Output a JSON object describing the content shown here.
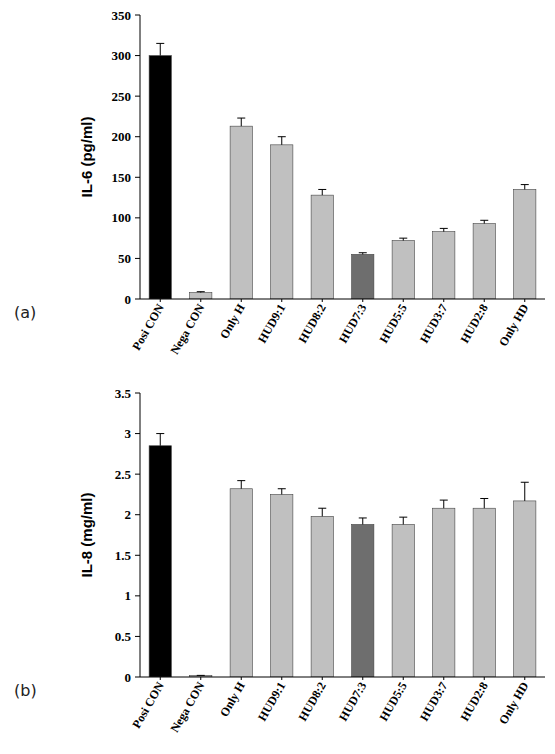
{
  "chart_data": [
    {
      "type": "bar",
      "panel_label": "(a)",
      "ylabel": "IL-6 (pg/ml)",
      "categories": [
        "Posi CON",
        "Nega CON",
        "Only H",
        "HUD9:1",
        "HUD8:2",
        "HUD7:3",
        "HUD5:5",
        "HUD3:7",
        "HUD2:8",
        "Only HD"
      ],
      "values": [
        300,
        8,
        213,
        190,
        128,
        55,
        72,
        83,
        93,
        135
      ],
      "errors": [
        15,
        1,
        10,
        10,
        7,
        2,
        3,
        4,
        4,
        6
      ],
      "colors": [
        "#000000",
        "#c0c0c0",
        "#c0c0c0",
        "#c0c0c0",
        "#c0c0c0",
        "#6e6e6e",
        "#c0c0c0",
        "#c0c0c0",
        "#c0c0c0",
        "#c0c0c0"
      ],
      "ylim": [
        0,
        350
      ],
      "yticks": [
        0,
        50,
        100,
        150,
        200,
        250,
        300,
        350
      ],
      "grid": false
    },
    {
      "type": "bar",
      "panel_label": "(b)",
      "ylabel": "IL-8 (mg/ml)",
      "categories": [
        "Posi CON",
        "Nega CON",
        "Only H",
        "HUD9:1",
        "HUD8:2",
        "HUD7:3",
        "HUD5:5",
        "HUD3:7",
        "HUD2:8",
        "Only HD"
      ],
      "values": [
        2.85,
        0.02,
        2.32,
        2.25,
        1.98,
        1.88,
        1.88,
        2.08,
        2.08,
        2.17
      ],
      "errors": [
        0.15,
        0,
        0.1,
        0.07,
        0.1,
        0.08,
        0.09,
        0.1,
        0.12,
        0.23
      ],
      "colors": [
        "#000000",
        "#c0c0c0",
        "#c0c0c0",
        "#c0c0c0",
        "#c0c0c0",
        "#6e6e6e",
        "#c0c0c0",
        "#c0c0c0",
        "#c0c0c0",
        "#c0c0c0"
      ],
      "ylim": [
        0,
        3.5
      ],
      "yticks": [
        0,
        0.5,
        1,
        1.5,
        2,
        2.5,
        3,
        3.5
      ],
      "grid": false
    }
  ]
}
